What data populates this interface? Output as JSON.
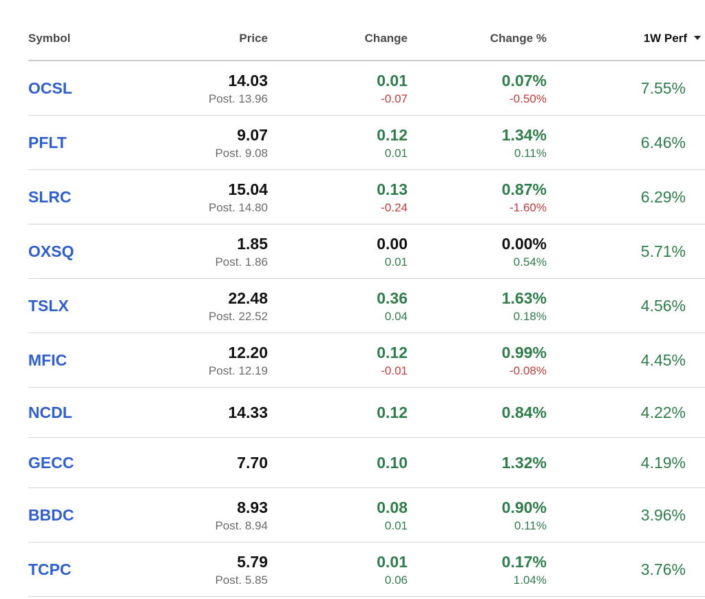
{
  "headers": {
    "symbol": "Symbol",
    "price": "Price",
    "change": "Change",
    "change_pct": "Change %",
    "perf": "1W Perf"
  },
  "colors": {
    "symbol_link": "#2f5fce",
    "positive": "#2e7d4a",
    "negative": "#c23a3a",
    "muted": "#6b6b6b"
  },
  "rows": [
    {
      "symbol": "OCSL",
      "price": "14.03",
      "post": "Post. 13.96",
      "change": "0.01",
      "change_post": "-0.07",
      "change_pct": "0.07%",
      "change_pct_post": "-0.50%",
      "perf": "7.55%",
      "change_dir": "pos",
      "post_dir": "neg"
    },
    {
      "symbol": "PFLT",
      "price": "9.07",
      "post": "Post. 9.08",
      "change": "0.12",
      "change_post": "0.01",
      "change_pct": "1.34%",
      "change_pct_post": "0.11%",
      "perf": "6.46%",
      "change_dir": "pos",
      "post_dir": "pos"
    },
    {
      "symbol": "SLRC",
      "price": "15.04",
      "post": "Post. 14.80",
      "change": "0.13",
      "change_post": "-0.24",
      "change_pct": "0.87%",
      "change_pct_post": "-1.60%",
      "perf": "6.29%",
      "change_dir": "pos",
      "post_dir": "neg"
    },
    {
      "symbol": "OXSQ",
      "price": "1.85",
      "post": "Post. 1.86",
      "change": "0.00",
      "change_post": "0.01",
      "change_pct": "0.00%",
      "change_pct_post": "0.54%",
      "perf": "5.71%",
      "change_dir": "neutral",
      "post_dir": "pos"
    },
    {
      "symbol": "TSLX",
      "price": "22.48",
      "post": "Post. 22.52",
      "change": "0.36",
      "change_post": "0.04",
      "change_pct": "1.63%",
      "change_pct_post": "0.18%",
      "perf": "4.56%",
      "change_dir": "pos",
      "post_dir": "pos"
    },
    {
      "symbol": "MFIC",
      "price": "12.20",
      "post": "Post. 12.19",
      "change": "0.12",
      "change_post": "-0.01",
      "change_pct": "0.99%",
      "change_pct_post": "-0.08%",
      "perf": "4.45%",
      "change_dir": "pos",
      "post_dir": "neg"
    },
    {
      "symbol": "NCDL",
      "price": "14.33",
      "post": "",
      "change": "0.12",
      "change_post": "",
      "change_pct": "0.84%",
      "change_pct_post": "",
      "perf": "4.22%",
      "change_dir": "pos",
      "post_dir": ""
    },
    {
      "symbol": "GECC",
      "price": "7.70",
      "post": "",
      "change": "0.10",
      "change_post": "",
      "change_pct": "1.32%",
      "change_pct_post": "",
      "perf": "4.19%",
      "change_dir": "pos",
      "post_dir": ""
    },
    {
      "symbol": "BBDC",
      "price": "8.93",
      "post": "Post. 8.94",
      "change": "0.08",
      "change_post": "0.01",
      "change_pct": "0.90%",
      "change_pct_post": "0.11%",
      "perf": "3.96%",
      "change_dir": "pos",
      "post_dir": "pos"
    },
    {
      "symbol": "TCPC",
      "price": "5.79",
      "post": "Post. 5.85",
      "change": "0.01",
      "change_post": "0.06",
      "change_pct": "0.17%",
      "change_pct_post": "1.04%",
      "perf": "3.76%",
      "change_dir": "pos",
      "post_dir": "pos"
    }
  ]
}
